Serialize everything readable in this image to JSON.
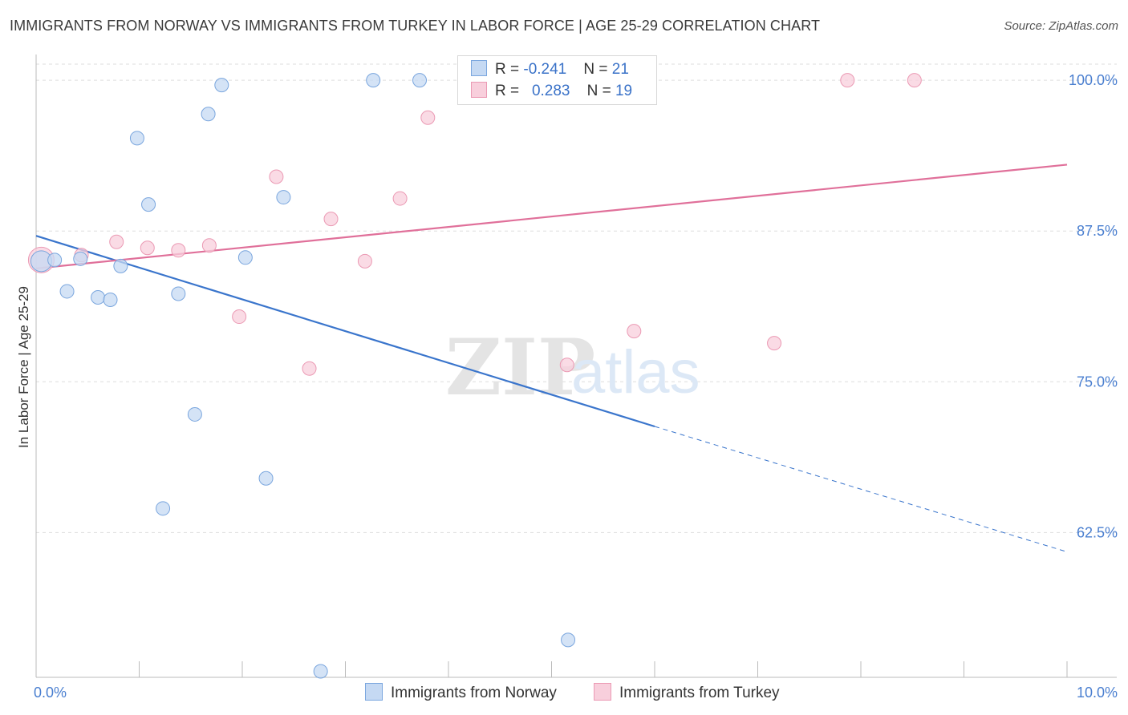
{
  "title": "IMMIGRANTS FROM NORWAY VS IMMIGRANTS FROM TURKEY IN LABOR FORCE | AGE 25-29 CORRELATION CHART",
  "source": "Source: ZipAtlas.com",
  "watermark": {
    "zip": "ZIP",
    "atlas": "atlas"
  },
  "legend": {
    "norway": {
      "r_label": "R = ",
      "r_value": "-0.241",
      "n_label": "N = ",
      "n_value": "21"
    },
    "turkey": {
      "r_label": "R = ",
      "r_value": "0.283",
      "n_label": "N = ",
      "n_value": "19"
    }
  },
  "colors": {
    "norway_fill": "#c5d9f3",
    "norway_stroke": "#7aa6de",
    "norway_line": "#3a75cc",
    "turkey_fill": "#f8cfdc",
    "turkey_stroke": "#eb9ab4",
    "turkey_line": "#e0709a",
    "grid": "#dddddd"
  },
  "chart_data": {
    "type": "scatter",
    "title": "IMMIGRANTS FROM NORWAY VS IMMIGRANTS FROM TURKEY IN LABOR FORCE | AGE 25-29 CORRELATION CHART",
    "xlabel": "",
    "ylabel": "In Labor Force | Age 25-29",
    "xlim": [
      0,
      10
    ],
    "ylim": [
      50.5,
      102
    ],
    "x_tick_labels": [
      "0.0%",
      "10.0%"
    ],
    "y_ticks": [
      62.5,
      75.0,
      87.5,
      100.0
    ],
    "y_tick_labels": [
      "62.5%",
      "75.0%",
      "87.5%",
      "100.0%"
    ],
    "grid": true,
    "legend_position": "bottom",
    "series": [
      {
        "name": "Immigrants from Norway",
        "points": [
          {
            "x": 0.05,
            "y": 85.0
          },
          {
            "x": 0.18,
            "y": 85.1
          },
          {
            "x": 0.3,
            "y": 82.5
          },
          {
            "x": 0.43,
            "y": 85.2
          },
          {
            "x": 0.6,
            "y": 82.0
          },
          {
            "x": 0.72,
            "y": 81.8
          },
          {
            "x": 0.82,
            "y": 84.6
          },
          {
            "x": 0.98,
            "y": 95.2
          },
          {
            "x": 1.09,
            "y": 89.7
          },
          {
            "x": 1.23,
            "y": 64.5
          },
          {
            "x": 1.38,
            "y": 82.3
          },
          {
            "x": 1.54,
            "y": 72.3
          },
          {
            "x": 1.67,
            "y": 97.2
          },
          {
            "x": 1.8,
            "y": 99.6
          },
          {
            "x": 2.03,
            "y": 85.3
          },
          {
            "x": 2.23,
            "y": 67.0
          },
          {
            "x": 2.4,
            "y": 90.3
          },
          {
            "x": 2.76,
            "y": 51.0
          },
          {
            "x": 3.27,
            "y": 100.0
          },
          {
            "x": 3.72,
            "y": 100.0
          },
          {
            "x": 5.16,
            "y": 53.6
          }
        ],
        "trend": {
          "x1": 0.0,
          "y1": 87.1,
          "x2": 6.0,
          "y2": 71.3,
          "dashed_to_x": 10.0,
          "dashed_to_y": 60.9
        }
      },
      {
        "name": "Immigrants from Turkey",
        "points": [
          {
            "x": 0.05,
            "y": 85.1
          },
          {
            "x": 0.44,
            "y": 85.5
          },
          {
            "x": 0.78,
            "y": 86.6
          },
          {
            "x": 1.08,
            "y": 86.1
          },
          {
            "x": 1.38,
            "y": 85.9
          },
          {
            "x": 1.68,
            "y": 86.3
          },
          {
            "x": 1.97,
            "y": 80.4
          },
          {
            "x": 2.33,
            "y": 92.0
          },
          {
            "x": 2.65,
            "y": 76.1
          },
          {
            "x": 2.86,
            "y": 88.5
          },
          {
            "x": 3.19,
            "y": 85.0
          },
          {
            "x": 3.53,
            "y": 90.2
          },
          {
            "x": 3.8,
            "y": 96.9
          },
          {
            "x": 4.38,
            "y": 100.0
          },
          {
            "x": 5.15,
            "y": 76.4
          },
          {
            "x": 5.8,
            "y": 79.2
          },
          {
            "x": 7.16,
            "y": 78.2
          },
          {
            "x": 7.87,
            "y": 100.0
          },
          {
            "x": 8.52,
            "y": 100.0
          }
        ],
        "trend": {
          "x1": 0.0,
          "y1": 84.4,
          "x2": 10.0,
          "y2": 93.0
        }
      }
    ]
  }
}
